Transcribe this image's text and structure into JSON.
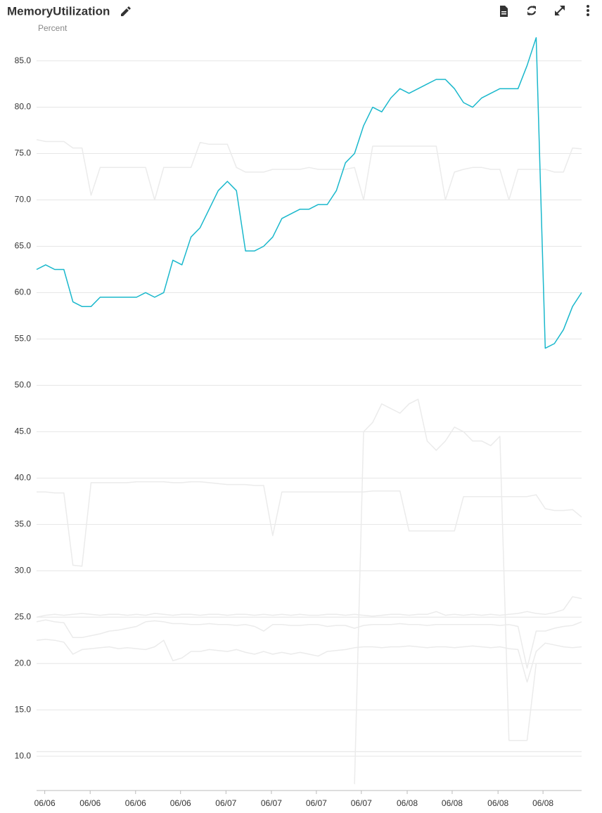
{
  "chart_data": {
    "type": "line",
    "title": "MemoryUtilization",
    "y_label": "Percent",
    "x": [
      0,
      2,
      4,
      6,
      8,
      10,
      12,
      14,
      16,
      18,
      20,
      22,
      24,
      26,
      28,
      30,
      32,
      34,
      36,
      38,
      40,
      42,
      44,
      46,
      48,
      50,
      52,
      54,
      56,
      58,
      60,
      62,
      64,
      66,
      68,
      70,
      72,
      74,
      76,
      78,
      80,
      82,
      84,
      86,
      88,
      90,
      92,
      94,
      96,
      98,
      100,
      102,
      104,
      106,
      108,
      110,
      112,
      114,
      116,
      118,
      120
    ],
    "xlim": [
      0,
      120
    ],
    "xticks": [
      {
        "value": 1.8,
        "label": "06/06"
      },
      {
        "value": 11.8,
        "label": "06/06"
      },
      {
        "value": 21.8,
        "label": "06/06"
      },
      {
        "value": 31.7,
        "label": "06/06"
      },
      {
        "value": 41.7,
        "label": "06/07"
      },
      {
        "value": 51.7,
        "label": "06/07"
      },
      {
        "value": 61.6,
        "label": "06/07"
      },
      {
        "value": 71.5,
        "label": "06/07"
      },
      {
        "value": 81.6,
        "label": "06/08"
      },
      {
        "value": 91.5,
        "label": "06/08"
      },
      {
        "value": 101.6,
        "label": "06/08"
      },
      {
        "value": 111.5,
        "label": "06/08"
      }
    ],
    "ylim": [
      6.3,
      88
    ],
    "yticks": [
      {
        "value": 10,
        "label": "10.0"
      },
      {
        "value": 15,
        "label": "15.0"
      },
      {
        "value": 20,
        "label": "20.0"
      },
      {
        "value": 25,
        "label": "25.0"
      },
      {
        "value": 30,
        "label": "30.0"
      },
      {
        "value": 35,
        "label": "35.0"
      },
      {
        "value": 40,
        "label": "40.0"
      },
      {
        "value": 45,
        "label": "45.0"
      },
      {
        "value": 50,
        "label": "50.0"
      },
      {
        "value": 55,
        "label": "55.0"
      },
      {
        "value": 60,
        "label": "60.0"
      },
      {
        "value": 65,
        "label": "65.0"
      },
      {
        "value": 70,
        "label": "70.0"
      },
      {
        "value": 75,
        "label": "75.0"
      },
      {
        "value": 80,
        "label": "80.0"
      },
      {
        "value": 85,
        "label": "85.0"
      }
    ],
    "grid": true,
    "series": [
      {
        "color": "#ebebeb",
        "values": [
          76.5,
          76.3,
          76.3,
          76.3,
          75.6,
          75.6,
          70.5,
          73.5,
          73.5,
          73.5,
          73.5,
          73.5,
          73.5,
          70,
          73.5,
          73.5,
          73.5,
          73.5,
          76.2,
          76,
          76,
          76,
          73.5,
          73,
          73,
          73,
          73.3,
          73.3,
          73.3,
          73.3,
          73.5,
          73.3,
          73.3,
          73.3,
          73.3,
          73.5,
          70,
          75.8,
          75.8,
          75.8,
          75.8,
          75.8,
          75.8,
          75.8,
          75.8,
          70,
          73,
          73.3,
          73.5,
          73.5,
          73.3,
          73.3,
          70,
          73.3,
          73.3,
          73.3,
          73.3,
          73,
          73,
          75.6,
          75.5
        ]
      },
      {
        "color": "#ebebeb",
        "values": [
          38.5,
          38.5,
          38.4,
          38.4,
          30.6,
          30.5,
          39.5,
          39.5,
          39.5,
          39.5,
          39.5,
          39.6,
          39.6,
          39.6,
          39.6,
          39.5,
          39.5,
          39.6,
          39.6,
          39.5,
          39.4,
          39.3,
          39.3,
          39.3,
          39.2,
          39.2,
          33.8,
          38.5,
          38.5,
          38.5,
          38.5,
          38.5,
          38.5,
          38.5,
          38.5,
          38.5,
          38.5,
          38.6,
          38.6,
          38.6,
          38.6,
          34.3,
          34.3,
          34.3,
          34.3,
          34.3,
          34.3,
          38,
          38,
          38,
          38,
          38,
          38,
          38,
          38,
          38.2,
          36.7,
          36.5,
          36.5,
          36.6,
          35.8
        ]
      },
      {
        "color": "#ebebeb",
        "values": [
          null,
          null,
          null,
          null,
          null,
          null,
          null,
          null,
          null,
          null,
          null,
          null,
          null,
          null,
          null,
          null,
          null,
          null,
          null,
          null,
          null,
          null,
          null,
          null,
          null,
          null,
          null,
          null,
          null,
          null,
          null,
          null,
          null,
          null,
          null,
          7,
          45,
          46,
          48,
          47.5,
          47,
          48,
          48.5,
          44,
          43,
          44,
          45.5,
          45,
          44,
          44,
          43.5,
          44.5,
          11.7,
          11.7,
          11.7,
          20,
          20,
          20,
          20,
          20,
          20
        ]
      },
      {
        "color": "#ebebeb",
        "values": [
          25,
          25.2,
          25.3,
          25.2,
          25.3,
          25.4,
          25.3,
          25.2,
          25.3,
          25.3,
          25.2,
          25.3,
          25.2,
          25.4,
          25.3,
          25.2,
          25.3,
          25.3,
          25.2,
          25.3,
          25.3,
          25.2,
          25.3,
          25.3,
          25.2,
          25.3,
          25.2,
          25.3,
          25.2,
          25.3,
          25.2,
          25.2,
          25.3,
          25.3,
          25.2,
          25.3,
          25.2,
          25.1,
          25.2,
          25.3,
          25.3,
          25.2,
          25.3,
          25.3,
          25.6,
          25.2,
          25.3,
          25.2,
          25.3,
          25.2,
          25.3,
          25.2,
          25.3,
          25.4,
          25.6,
          25.4,
          25.3,
          25.5,
          25.8,
          27.2,
          27
        ]
      },
      {
        "color": "#ebebeb",
        "values": [
          24.5,
          24.7,
          24.5,
          24.4,
          22.8,
          22.8,
          23,
          23.2,
          23.5,
          23.6,
          23.8,
          24,
          24.5,
          24.6,
          24.5,
          24.3,
          24.3,
          24.2,
          24.2,
          24.3,
          24.2,
          24.2,
          24.1,
          24.2,
          24,
          23.5,
          24.2,
          24.2,
          24.1,
          24.1,
          24.2,
          24.2,
          24,
          24.1,
          24.1,
          23.8,
          24.1,
          24.2,
          24.2,
          24.2,
          24.3,
          24.2,
          24.2,
          24.1,
          24.2,
          24.2,
          24.2,
          24.2,
          24.2,
          24.2,
          24.2,
          24.1,
          24.2,
          24,
          19.5,
          23.5,
          23.5,
          23.8,
          24,
          24.1,
          24.5
        ]
      },
      {
        "color": "#ebebeb",
        "values": [
          22.5,
          22.6,
          22.5,
          22.3,
          21,
          21.5,
          21.6,
          21.7,
          21.8,
          21.6,
          21.7,
          21.6,
          21.5,
          21.8,
          22.5,
          20.3,
          20.6,
          21.3,
          21.3,
          21.5,
          21.4,
          21.3,
          21.5,
          21.2,
          21,
          21.3,
          21,
          21.2,
          21,
          21.2,
          21,
          20.8,
          21.3,
          21.4,
          21.5,
          21.7,
          21.8,
          21.8,
          21.7,
          21.8,
          21.8,
          21.9,
          21.8,
          21.7,
          21.8,
          21.8,
          21.7,
          21.8,
          21.9,
          21.8,
          21.7,
          21.8,
          21.6,
          21.5,
          18,
          21.3,
          22.2,
          22,
          21.8,
          21.7,
          21.8
        ]
      },
      {
        "color": "#ebebeb",
        "values": [
          10.5,
          10.5,
          10.5,
          10.5,
          10.5,
          10.5,
          10.5,
          10.5,
          10.5,
          10.5,
          10.5,
          10.5,
          10.5,
          10.5,
          10.5,
          10.5,
          10.5,
          10.5,
          10.5,
          10.5,
          10.5,
          10.5,
          10.5,
          10.5,
          10.5,
          10.5,
          10.5,
          10.5,
          10.5,
          10.5,
          10.5,
          10.5,
          10.5,
          10.5,
          10.5,
          10.5,
          10.5,
          10.5,
          10.5,
          10.5,
          10.5,
          10.5,
          10.5,
          10.5,
          10.5,
          10.5,
          10.5,
          10.5,
          10.5,
          10.5,
          10.5,
          10.5,
          10.5,
          10.5,
          10.5,
          10.5,
          10.5,
          10.5,
          10.5,
          10.5,
          10.5
        ]
      },
      {
        "color": "#1ab8cc",
        "values": [
          62.5,
          63,
          62.5,
          62.5,
          59,
          58.5,
          58.5,
          59.5,
          59.5,
          59.5,
          59.5,
          59.5,
          60,
          59.5,
          60,
          63.5,
          63,
          66,
          67,
          69,
          71,
          72,
          71,
          64.5,
          64.5,
          65,
          66,
          68,
          68.5,
          69,
          69,
          69.5,
          69.5,
          71,
          74,
          75,
          78,
          80,
          79.5,
          81,
          82,
          81.5,
          82,
          82.5,
          83,
          83,
          82,
          80.5,
          80,
          81,
          81.5,
          82,
          82,
          82,
          84.5,
          87.5,
          54,
          54.5,
          56,
          58.5,
          60
        ]
      }
    ]
  }
}
